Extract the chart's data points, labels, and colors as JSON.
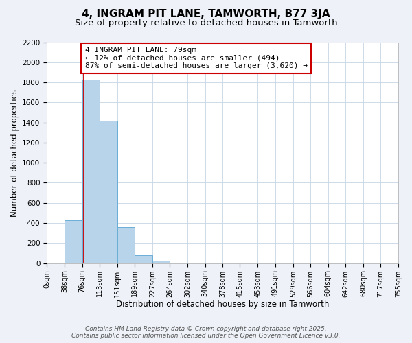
{
  "title": "4, INGRAM PIT LANE, TAMWORTH, B77 3JA",
  "subtitle": "Size of property relative to detached houses in Tamworth",
  "xlabel": "Distribution of detached houses by size in Tamworth",
  "ylabel": "Number of detached properties",
  "bar_edges": [
    0,
    38,
    76,
    113,
    151,
    189,
    227,
    264,
    302,
    340,
    378,
    415,
    453,
    491,
    529,
    566,
    604,
    642,
    680,
    717,
    755
  ],
  "bar_heights": [
    0,
    430,
    1830,
    1420,
    360,
    80,
    25,
    0,
    0,
    0,
    0,
    0,
    0,
    0,
    0,
    0,
    0,
    0,
    0,
    0
  ],
  "bar_color": "#b8d4ea",
  "bar_edge_color": "#6aaed6",
  "property_line_x": 79,
  "property_line_color": "#cc0000",
  "annotation_text": "4 INGRAM PIT LANE: 79sqm\n← 12% of detached houses are smaller (494)\n87% of semi-detached houses are larger (3,620) →",
  "annotation_box_color": "#ffffff",
  "annotation_box_edge": "#cc0000",
  "ylim": [
    0,
    2200
  ],
  "yticks": [
    0,
    200,
    400,
    600,
    800,
    1000,
    1200,
    1400,
    1600,
    1800,
    2000,
    2200
  ],
  "tick_labels": [
    "0sqm",
    "38sqm",
    "76sqm",
    "113sqm",
    "151sqm",
    "189sqm",
    "227sqm",
    "264sqm",
    "302sqm",
    "340sqm",
    "378sqm",
    "415sqm",
    "453sqm",
    "491sqm",
    "529sqm",
    "566sqm",
    "604sqm",
    "642sqm",
    "680sqm",
    "717sqm",
    "755sqm"
  ],
  "footer_line1": "Contains HM Land Registry data © Crown copyright and database right 2025.",
  "footer_line2": "Contains public sector information licensed under the Open Government Licence v3.0.",
  "bg_color": "#eef2f8",
  "plot_bg_color": "#ffffff",
  "grid_color": "#c8d4e4",
  "title_fontsize": 11,
  "subtitle_fontsize": 9.5,
  "axis_label_fontsize": 8.5,
  "tick_fontsize": 7.5,
  "annotation_fontsize": 8,
  "footer_fontsize": 6.5
}
